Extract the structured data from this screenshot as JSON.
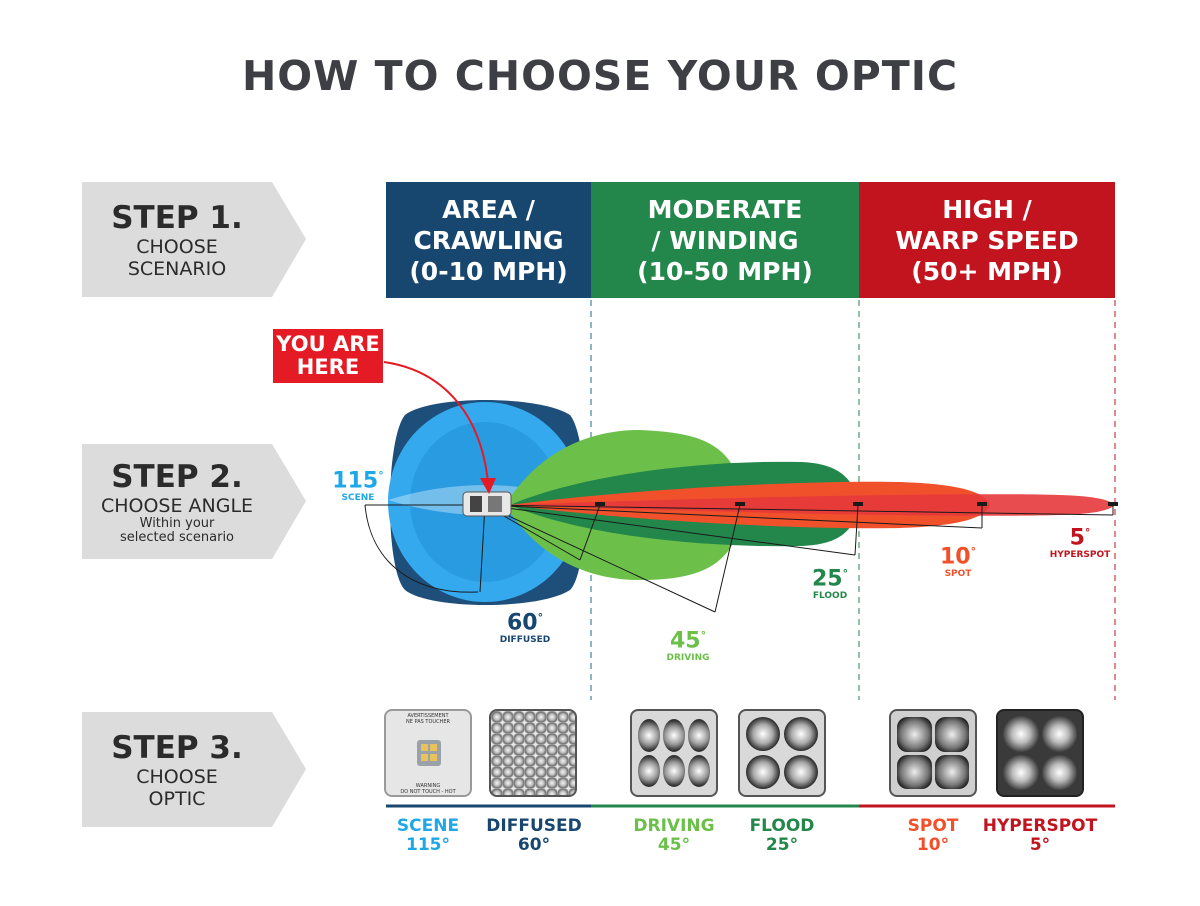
{
  "title": "HOW TO CHOOSE YOUR OPTIC",
  "steps": [
    {
      "big": "STEP 1.",
      "sub": "CHOOSE",
      "sub_b": "SCENARIO",
      "note": ""
    },
    {
      "big": "STEP 2.",
      "sub": "CHOOSE ANGLE",
      "sub_b": "",
      "note": "Within your\nselected scenario"
    },
    {
      "big": "STEP 3.",
      "sub": "CHOOSE",
      "sub_b": "OPTIC",
      "note": ""
    }
  ],
  "scenarios": [
    {
      "label": "AREA /\nCRAWLING\n(0-10 MPH)",
      "color": "#17466f"
    },
    {
      "label": "MODERATE\n/ WINDING\n(10-50 MPH)",
      "color": "#23864a"
    },
    {
      "label": "HIGH /\nWARP SPEED\n(50+ MPH)",
      "color": "#c1141f"
    }
  ],
  "marker": "YOU ARE\nHERE",
  "angles": [
    {
      "value": "115",
      "unit": "°",
      "label": "SCENE",
      "color": "#1fa7e8"
    },
    {
      "value": "60",
      "unit": "°",
      "label": "DIFFUSED",
      "color": "#17466f"
    },
    {
      "value": "45",
      "unit": "°",
      "label": "DRIVING",
      "color": "#6cc04a"
    },
    {
      "value": "25",
      "unit": "°",
      "label": "FLOOD",
      "color": "#23864a"
    },
    {
      "value": "10",
      "unit": "°",
      "label": "SPOT",
      "color": "#f0512a"
    },
    {
      "value": "5",
      "unit": "°",
      "label": "HYPERSPOT",
      "color": "#c1141f"
    }
  ],
  "optics": [
    {
      "name": "SCENE\n115°",
      "color": "#1fa7e8",
      "warning_top": "AVERTISSEMENT\nNE PAS TOUCHER",
      "warning_bottom": "WARNING\nDO NOT TOUCH - HOT"
    },
    {
      "name": "DIFFUSED\n60°",
      "color": "#17466f"
    },
    {
      "name": "DRIVING\n45°",
      "color": "#6cc04a"
    },
    {
      "name": "FLOOD\n25°",
      "color": "#23864a"
    },
    {
      "name": "SPOT\n10°",
      "color": "#f0512a"
    },
    {
      "name": "HYPERSPOT\n5°",
      "color": "#c1141f"
    }
  ]
}
